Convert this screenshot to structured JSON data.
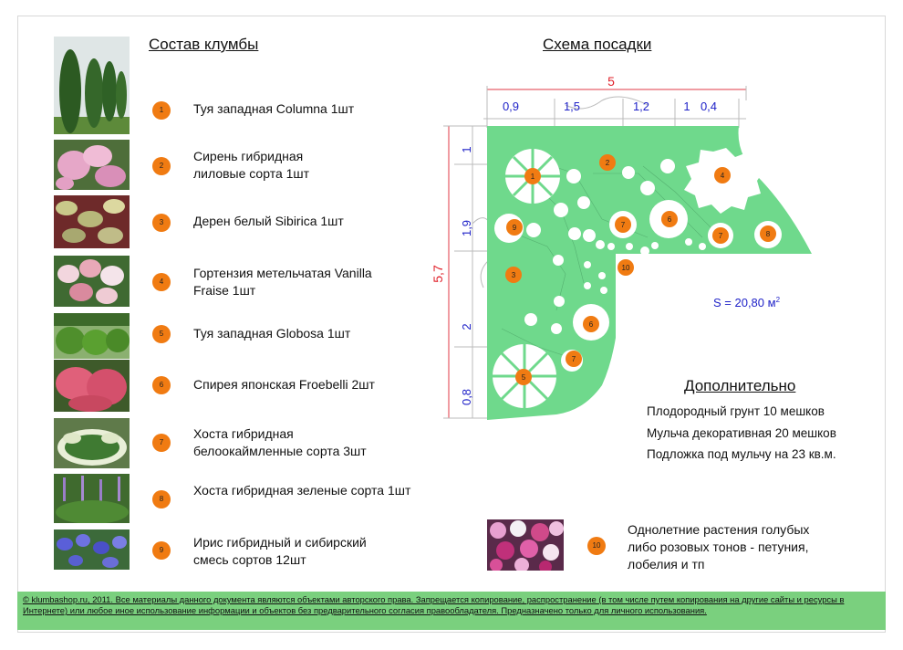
{
  "composition_title": "Состав клумбы",
  "scheme_title": "Схема посадки",
  "plants": [
    {
      "num": "1",
      "name": "Туя западная Columna 1шт"
    },
    {
      "num": "2",
      "name": "Сирень гибридная лиловые сорта 1шт"
    },
    {
      "num": "3",
      "name": "Дерен белый Sibirica 1шт"
    },
    {
      "num": "4",
      "name": "Гортензия метельчатая Vanilla Fraise 1шт"
    },
    {
      "num": "5",
      "name": "Туя западная Globosa 1шт"
    },
    {
      "num": "6",
      "name": "Спирея японская Froebelli 2шт"
    },
    {
      "num": "7",
      "name": "Хоста гибридная белоокаймленные сорта 3шт"
    },
    {
      "num": "8",
      "name": "Хоста гибридная зеленые сорта 1шт"
    },
    {
      "num": "9",
      "name": "Ирис гибридный и сибирский смесь сортов 12шт"
    }
  ],
  "dimensions": {
    "total_width": "5",
    "top": [
      "0,9",
      "1,5",
      "1,2",
      "1",
      "0,4"
    ],
    "total_height": "5,7",
    "left": [
      "1",
      "1,9",
      "2",
      "0,8"
    ]
  },
  "area_label": "S = 20,80 м",
  "area_sup": "2",
  "scheme_numbers": {
    "n1": "1",
    "n2": "2",
    "n3": "3",
    "n4": "4",
    "n5": "5",
    "n6a": "6",
    "n6b": "6",
    "n7a": "7",
    "n7b": "7",
    "n7c": "7",
    "n8": "8",
    "n9": "9",
    "n10": "10"
  },
  "additional": {
    "title": "Дополнительно",
    "items": [
      "Плодородный грунт 10 мешков",
      "Мульча декоративная 20 мешков",
      "Подложка под мульчу на 23 кв.м."
    ]
  },
  "annuals": {
    "num": "10",
    "text": "Однолетние растения голубых либо розовых тонов - петуния, лобелия и тп"
  },
  "footer": "© klumbashop.ru, 2011. Все материалы данного документа являются объектами авторского права. Запрещается копирование, распространение (в том числе путем копирования на другие сайты и ресурсы в Интернете) или любое иное использование информации и объектов без предварительного согласия правообладателя. Предназначено только для личного использования.",
  "colors": {
    "bed_green": "#6fd98c",
    "badge_orange": "#f07b12",
    "dim_blue": "#1f22c8",
    "dim_red": "#e0202a",
    "footer_green": "#7ad07e"
  }
}
